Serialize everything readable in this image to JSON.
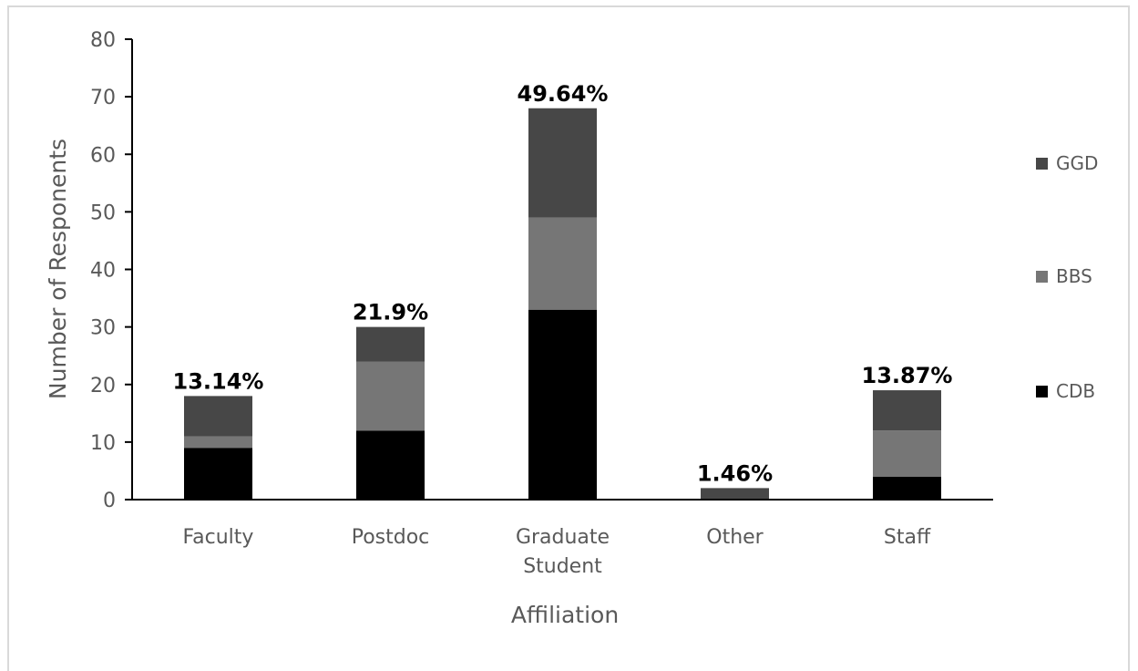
{
  "chart_data": {
    "type": "bar",
    "stacked": true,
    "categories": [
      [
        "Faculty"
      ],
      [
        "Postdoc"
      ],
      [
        "Graduate",
        "Student"
      ],
      [
        "Other"
      ],
      [
        "Staff"
      ]
    ],
    "series": [
      {
        "name": "CDB",
        "color": "#000000",
        "values": [
          9,
          12,
          33,
          0,
          4
        ]
      },
      {
        "name": "BBS",
        "color": "#767676",
        "values": [
          2,
          12,
          16,
          0,
          8
        ]
      },
      {
        "name": "GGD",
        "color": "#474747",
        "values": [
          7,
          6,
          19,
          2,
          7
        ]
      }
    ],
    "data_labels": [
      "13.14%",
      "21.9%",
      "49.64%",
      "1.46%",
      "13.87%"
    ],
    "xlabel": "Affiliation",
    "ylabel": "Number of Responents",
    "ylim": [
      0,
      80
    ],
    "yticks": [
      0,
      10,
      20,
      30,
      40,
      50,
      60,
      70,
      80
    ],
    "grid": false,
    "legend_position": "right",
    "legend_order": [
      "GGD",
      "BBS",
      "CDB"
    ]
  }
}
